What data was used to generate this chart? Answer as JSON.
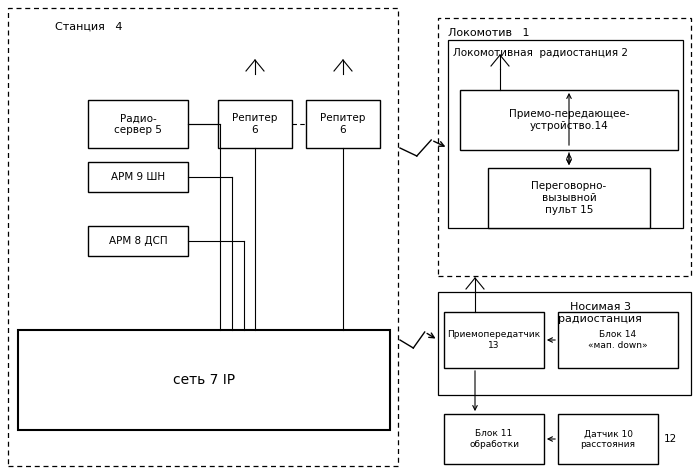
{
  "bg_color": "#ffffff",
  "station_label": "Станция   4",
  "lokomotive_label": "Локомотив   1",
  "nosimaya_label": "Носимая 3\nрадиостанция",
  "loko_radio_label": "Локомотивная  радиостанция 2",
  "radio_server_label": "Радио-\nсервер 5",
  "arm9_label": "АРМ 9 ШН",
  "arm8_label": "АРМ 8 ДСП",
  "repeater_label": "Репитер\n6",
  "network_label": "сеть 7 IP",
  "priem14_label": "Приемо-передающее-\nустройство.14",
  "peregovorny_label": "Переговорно-\nвызывной\nпульт 15",
  "priem13_label": "Приемопередатчик\n13",
  "blok14_label": "Блок 14\n«мап. down»",
  "blok11_label": "Блок 11\nобработки",
  "datchik10_label": "Датчик 10\nрасстояния",
  "label12": "12"
}
